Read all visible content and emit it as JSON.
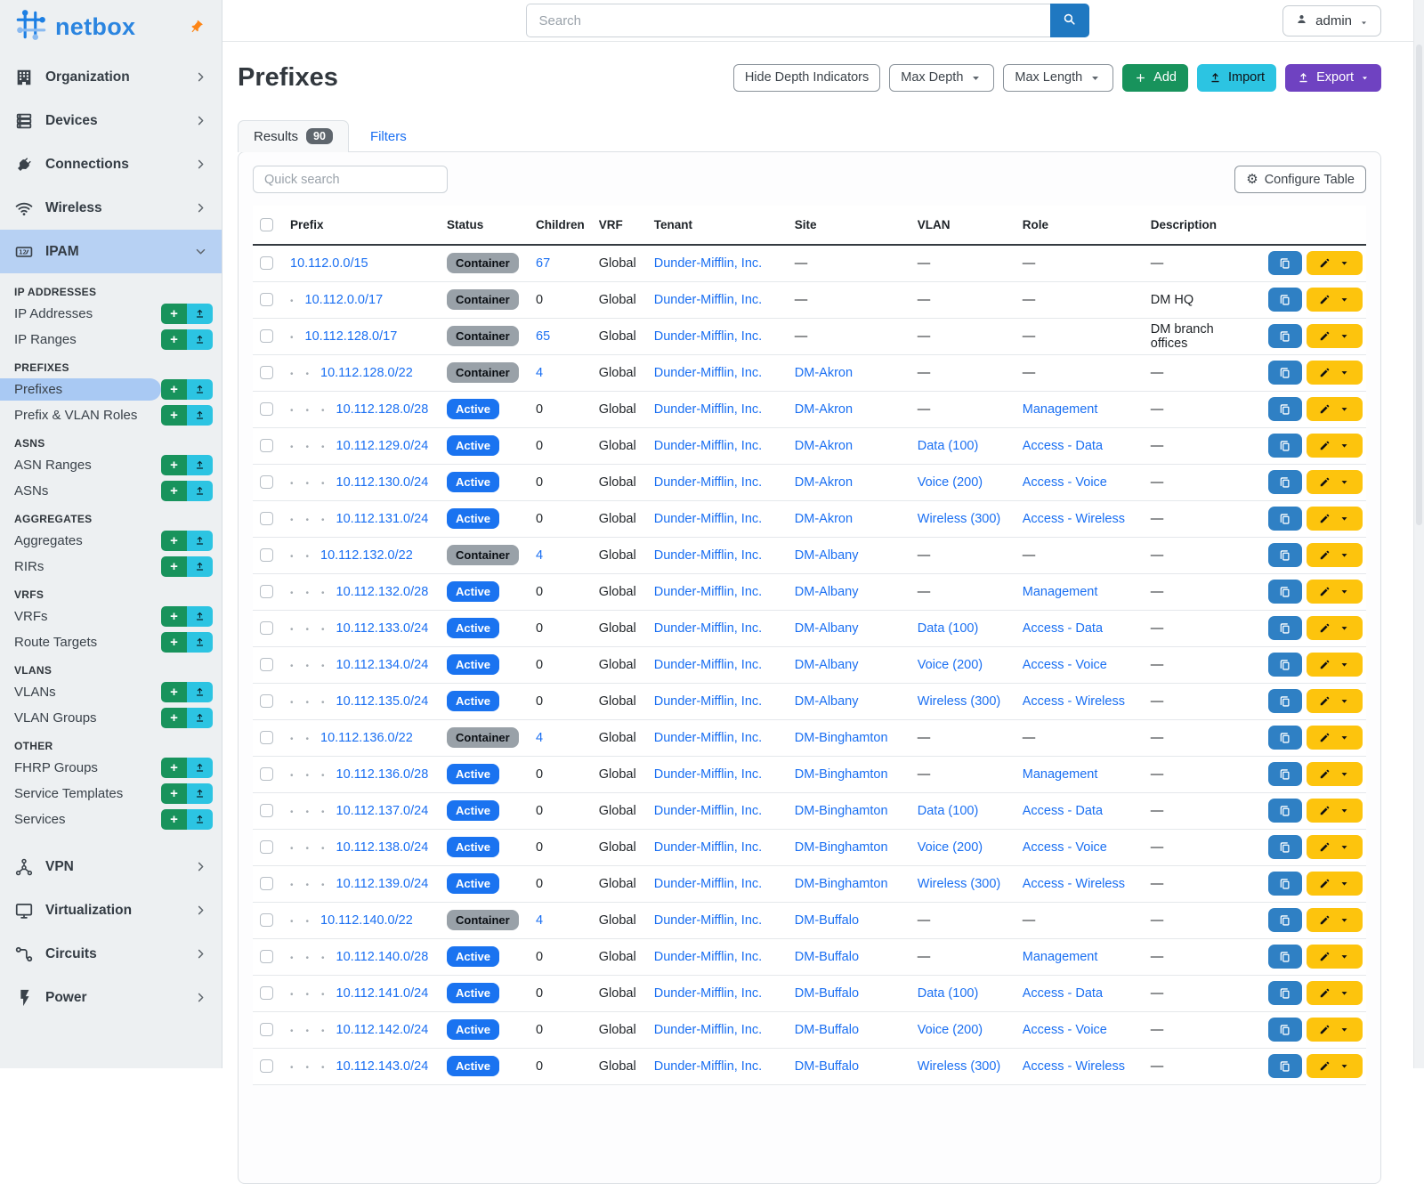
{
  "brand": {
    "name": "netbox"
  },
  "colors": {
    "primary": "#1f78c1",
    "logo": "#2b85e0",
    "link": "#1a6ff2",
    "green": "#18935c",
    "cyan": "#2cc4e2",
    "purple": "#6f42c1",
    "yellow": "#fdc40d",
    "badge_active": "#1a73f0",
    "badge_container": "#99a1a8",
    "sidebar_active": "#b7d1f3",
    "sidebar_item_active": "#a9c9f3",
    "copy_btn": "#2f80c4",
    "pin": "#fd8516"
  },
  "topbar": {
    "search_placeholder": "Search",
    "user": "admin"
  },
  "sidebar": {
    "top_items": [
      {
        "label": "Organization",
        "icon": "building-icon"
      },
      {
        "label": "Devices",
        "icon": "server-icon"
      },
      {
        "label": "Connections",
        "icon": "plug-icon"
      },
      {
        "label": "Wireless",
        "icon": "wifi-icon"
      },
      {
        "label": "IPAM",
        "icon": "ipam-icon",
        "active": true,
        "expanded": true
      }
    ],
    "ipam_sections": [
      {
        "header": "IP ADDRESSES",
        "items": [
          {
            "label": "IP Addresses"
          },
          {
            "label": "IP Ranges"
          }
        ]
      },
      {
        "header": "PREFIXES",
        "items": [
          {
            "label": "Prefixes",
            "active": true
          },
          {
            "label": "Prefix & VLAN Roles"
          }
        ]
      },
      {
        "header": "ASNS",
        "items": [
          {
            "label": "ASN Ranges"
          },
          {
            "label": "ASNs"
          }
        ]
      },
      {
        "header": "AGGREGATES",
        "items": [
          {
            "label": "Aggregates"
          },
          {
            "label": "RIRs"
          }
        ]
      },
      {
        "header": "VRFS",
        "items": [
          {
            "label": "VRFs"
          },
          {
            "label": "Route Targets"
          }
        ]
      },
      {
        "header": "VLANS",
        "items": [
          {
            "label": "VLANs"
          },
          {
            "label": "VLAN Groups"
          }
        ]
      },
      {
        "header": "OTHER",
        "items": [
          {
            "label": "FHRP Groups"
          },
          {
            "label": "Service Templates"
          },
          {
            "label": "Services"
          }
        ]
      }
    ],
    "bottom_items": [
      {
        "label": "VPN",
        "icon": "vpn-icon"
      },
      {
        "label": "Virtualization",
        "icon": "monitor-icon"
      },
      {
        "label": "Circuits",
        "icon": "circuits-icon"
      },
      {
        "label": "Power",
        "icon": "power-icon"
      }
    ]
  },
  "page": {
    "title": "Prefixes",
    "toolbar": {
      "hide_depth_indicators": "Hide Depth Indicators",
      "max_depth": "Max Depth",
      "max_length": "Max Length",
      "add": "Add",
      "import": "Import",
      "export": "Export"
    },
    "tabs": {
      "results": "Results",
      "results_count": "90",
      "filters": "Filters"
    },
    "quick_search_placeholder": "Quick search",
    "configure_table": "Configure Table"
  },
  "table": {
    "columns": [
      "Prefix",
      "Status",
      "Children",
      "VRF",
      "Tenant",
      "Site",
      "VLAN",
      "Role",
      "Description"
    ],
    "rows": [
      {
        "depth": 0,
        "prefix": "10.112.0.0/15",
        "status": "Container",
        "children": "67",
        "children_link": true,
        "vrf": "Global",
        "tenant": "Dunder-Mifflin, Inc.",
        "site": "—",
        "vlan": "—",
        "role": "—",
        "description": "—"
      },
      {
        "depth": 1,
        "prefix": "10.112.0.0/17",
        "status": "Container",
        "children": "0",
        "children_link": false,
        "vrf": "Global",
        "tenant": "Dunder-Mifflin, Inc.",
        "site": "—",
        "vlan": "—",
        "role": "—",
        "description": "DM HQ"
      },
      {
        "depth": 1,
        "prefix": "10.112.128.0/17",
        "status": "Container",
        "children": "65",
        "children_link": true,
        "vrf": "Global",
        "tenant": "Dunder-Mifflin, Inc.",
        "site": "—",
        "vlan": "—",
        "role": "—",
        "description": "DM branch offices"
      },
      {
        "depth": 2,
        "prefix": "10.112.128.0/22",
        "status": "Container",
        "children": "4",
        "children_link": true,
        "vrf": "Global",
        "tenant": "Dunder-Mifflin, Inc.",
        "site": "DM-Akron",
        "vlan": "—",
        "role": "—",
        "description": "—"
      },
      {
        "depth": 3,
        "prefix": "10.112.128.0/28",
        "status": "Active",
        "children": "0",
        "children_link": false,
        "vrf": "Global",
        "tenant": "Dunder-Mifflin, Inc.",
        "site": "DM-Akron",
        "vlan": "—",
        "role": "Management",
        "description": "—"
      },
      {
        "depth": 3,
        "prefix": "10.112.129.0/24",
        "status": "Active",
        "children": "0",
        "children_link": false,
        "vrf": "Global",
        "tenant": "Dunder-Mifflin, Inc.",
        "site": "DM-Akron",
        "vlan": "Data (100)",
        "role": "Access - Data",
        "description": "—"
      },
      {
        "depth": 3,
        "prefix": "10.112.130.0/24",
        "status": "Active",
        "children": "0",
        "children_link": false,
        "vrf": "Global",
        "tenant": "Dunder-Mifflin, Inc.",
        "site": "DM-Akron",
        "vlan": "Voice (200)",
        "role": "Access - Voice",
        "description": "—"
      },
      {
        "depth": 3,
        "prefix": "10.112.131.0/24",
        "status": "Active",
        "children": "0",
        "children_link": false,
        "vrf": "Global",
        "tenant": "Dunder-Mifflin, Inc.",
        "site": "DM-Akron",
        "vlan": "Wireless (300)",
        "role": "Access - Wireless",
        "description": "—"
      },
      {
        "depth": 2,
        "prefix": "10.112.132.0/22",
        "status": "Container",
        "children": "4",
        "children_link": true,
        "vrf": "Global",
        "tenant": "Dunder-Mifflin, Inc.",
        "site": "DM-Albany",
        "vlan": "—",
        "role": "—",
        "description": "—"
      },
      {
        "depth": 3,
        "prefix": "10.112.132.0/28",
        "status": "Active",
        "children": "0",
        "children_link": false,
        "vrf": "Global",
        "tenant": "Dunder-Mifflin, Inc.",
        "site": "DM-Albany",
        "vlan": "—",
        "role": "Management",
        "description": "—"
      },
      {
        "depth": 3,
        "prefix": "10.112.133.0/24",
        "status": "Active",
        "children": "0",
        "children_link": false,
        "vrf": "Global",
        "tenant": "Dunder-Mifflin, Inc.",
        "site": "DM-Albany",
        "vlan": "Data (100)",
        "role": "Access - Data",
        "description": "—"
      },
      {
        "depth": 3,
        "prefix": "10.112.134.0/24",
        "status": "Active",
        "children": "0",
        "children_link": false,
        "vrf": "Global",
        "tenant": "Dunder-Mifflin, Inc.",
        "site": "DM-Albany",
        "vlan": "Voice (200)",
        "role": "Access - Voice",
        "description": "—"
      },
      {
        "depth": 3,
        "prefix": "10.112.135.0/24",
        "status": "Active",
        "children": "0",
        "children_link": false,
        "vrf": "Global",
        "tenant": "Dunder-Mifflin, Inc.",
        "site": "DM-Albany",
        "vlan": "Wireless (300)",
        "role": "Access - Wireless",
        "description": "—"
      },
      {
        "depth": 2,
        "prefix": "10.112.136.0/22",
        "status": "Container",
        "children": "4",
        "children_link": true,
        "vrf": "Global",
        "tenant": "Dunder-Mifflin, Inc.",
        "site": "DM-Binghamton",
        "vlan": "—",
        "role": "—",
        "description": "—"
      },
      {
        "depth": 3,
        "prefix": "10.112.136.0/28",
        "status": "Active",
        "children": "0",
        "children_link": false,
        "vrf": "Global",
        "tenant": "Dunder-Mifflin, Inc.",
        "site": "DM-Binghamton",
        "vlan": "—",
        "role": "Management",
        "description": "—"
      },
      {
        "depth": 3,
        "prefix": "10.112.137.0/24",
        "status": "Active",
        "children": "0",
        "children_link": false,
        "vrf": "Global",
        "tenant": "Dunder-Mifflin, Inc.",
        "site": "DM-Binghamton",
        "vlan": "Data (100)",
        "role": "Access - Data",
        "description": "—"
      },
      {
        "depth": 3,
        "prefix": "10.112.138.0/24",
        "status": "Active",
        "children": "0",
        "children_link": false,
        "vrf": "Global",
        "tenant": "Dunder-Mifflin, Inc.",
        "site": "DM-Binghamton",
        "vlan": "Voice (200)",
        "role": "Access - Voice",
        "description": "—"
      },
      {
        "depth": 3,
        "prefix": "10.112.139.0/24",
        "status": "Active",
        "children": "0",
        "children_link": false,
        "vrf": "Global",
        "tenant": "Dunder-Mifflin, Inc.",
        "site": "DM-Binghamton",
        "vlan": "Wireless (300)",
        "role": "Access - Wireless",
        "description": "—"
      },
      {
        "depth": 2,
        "prefix": "10.112.140.0/22",
        "status": "Container",
        "children": "4",
        "children_link": true,
        "vrf": "Global",
        "tenant": "Dunder-Mifflin, Inc.",
        "site": "DM-Buffalo",
        "vlan": "—",
        "role": "—",
        "description": "—"
      },
      {
        "depth": 3,
        "prefix": "10.112.140.0/28",
        "status": "Active",
        "children": "0",
        "children_link": false,
        "vrf": "Global",
        "tenant": "Dunder-Mifflin, Inc.",
        "site": "DM-Buffalo",
        "vlan": "—",
        "role": "Management",
        "description": "—"
      },
      {
        "depth": 3,
        "prefix": "10.112.141.0/24",
        "status": "Active",
        "children": "0",
        "children_link": false,
        "vrf": "Global",
        "tenant": "Dunder-Mifflin, Inc.",
        "site": "DM-Buffalo",
        "vlan": "Data (100)",
        "role": "Access - Data",
        "description": "—"
      },
      {
        "depth": 3,
        "prefix": "10.112.142.0/24",
        "status": "Active",
        "children": "0",
        "children_link": false,
        "vrf": "Global",
        "tenant": "Dunder-Mifflin, Inc.",
        "site": "DM-Buffalo",
        "vlan": "Voice (200)",
        "role": "Access - Voice",
        "description": "—"
      },
      {
        "depth": 3,
        "prefix": "10.112.143.0/24",
        "status": "Active",
        "children": "0",
        "children_link": false,
        "vrf": "Global",
        "tenant": "Dunder-Mifflin, Inc.",
        "site": "DM-Buffalo",
        "vlan": "Wireless (300)",
        "role": "Access - Wireless",
        "description": "—"
      }
    ]
  }
}
